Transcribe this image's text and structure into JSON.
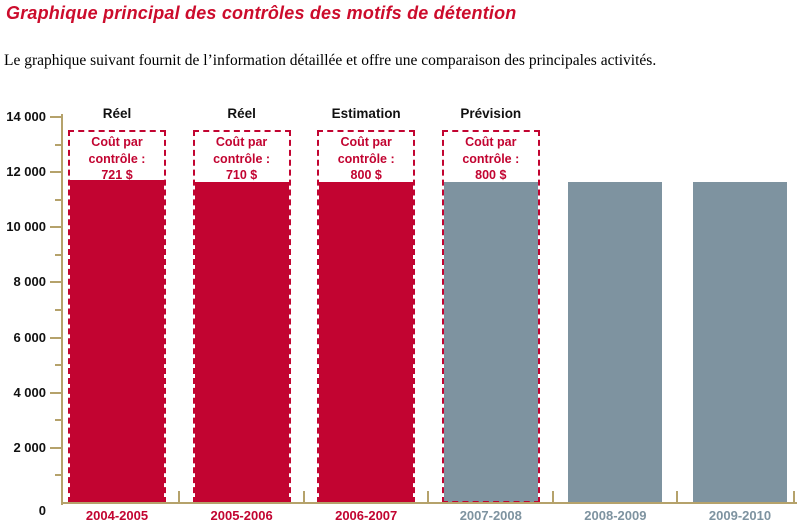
{
  "page": {
    "title": "Graphique principal des contrôles des motifs de détention",
    "subtitle": "Le graphique suivant fournit de l’information détaillée et offre une comparaison des principales activités."
  },
  "colors": {
    "title_red": "#cc0c2c",
    "bar_red": "#c20431",
    "bar_gray": "#7e93a0",
    "axis_tan": "#b5a26b",
    "label_gray": "#7e93a0",
    "text_black": "#111111"
  },
  "chart_data": {
    "type": "bar",
    "title": "",
    "xlabel": "",
    "ylabel": "",
    "categories": [
      "2004-2005",
      "2005-2006",
      "2006-2007",
      "2007-2008",
      "2008-2009",
      "2009-2010"
    ],
    "values": [
      11700,
      11650,
      11650,
      11650,
      11650,
      11650
    ],
    "ylim": [
      0,
      14000
    ],
    "ytick_labels": [
      "0",
      "2 000",
      "4 000",
      "6 000",
      "8 000",
      "10 000",
      "12 000",
      "14 000"
    ],
    "ytick_values": [
      0,
      2000,
      4000,
      6000,
      8000,
      10000,
      12000,
      14000
    ],
    "minor_tick_values": [
      1000,
      3000,
      5000,
      7000,
      9000,
      11000,
      13000
    ],
    "grid": false,
    "legend": "none",
    "bar_color_keys": [
      "bar_red",
      "bar_red",
      "bar_red",
      "bar_gray",
      "bar_gray",
      "bar_gray"
    ],
    "category_color_keys": [
      "bar_red",
      "bar_red",
      "bar_red",
      "label_gray",
      "label_gray",
      "label_gray"
    ],
    "annotations": [
      {
        "bar": 0,
        "header": "Réel",
        "lines": [
          "Coût par",
          "contrôle :",
          "721 $"
        ]
      },
      {
        "bar": 1,
        "header": "Réel",
        "lines": [
          "Coût par",
          "contrôle :",
          "710 $"
        ]
      },
      {
        "bar": 2,
        "header": "Estimation",
        "lines": [
          "Coût par",
          "contrôle :",
          "800 $"
        ]
      },
      {
        "bar": 3,
        "header": "Prévision",
        "lines": [
          "Coût par",
          "contrôle :",
          "800 $"
        ]
      }
    ]
  }
}
